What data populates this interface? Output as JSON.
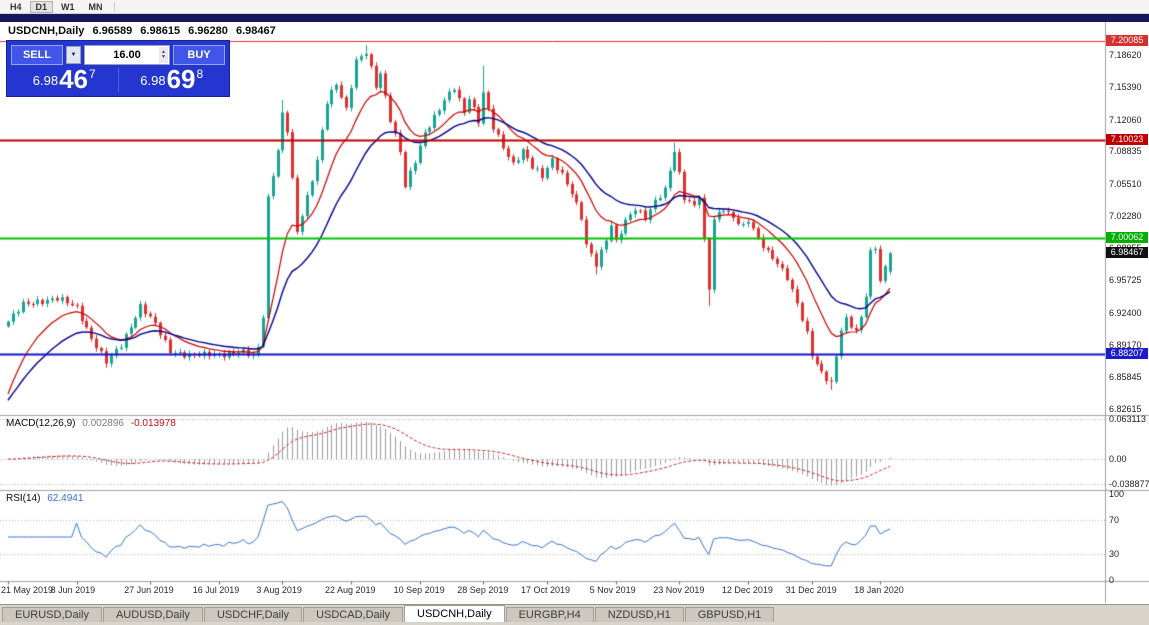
{
  "toolbar": {
    "timeframes": [
      "H4",
      "D1",
      "W1",
      "MN"
    ],
    "active_timeframe": "D1"
  },
  "chart_header": {
    "symbol": "USDCNH,Daily",
    "open": "6.96589",
    "high": "6.98615",
    "low": "6.96280",
    "close": "6.98467"
  },
  "trade_panel": {
    "sell_label": "SELL",
    "buy_label": "BUY",
    "volume": "16.00",
    "sell_price": {
      "prefix": "6.98",
      "big": "46",
      "sup": "7"
    },
    "buy_price": {
      "prefix": "6.98",
      "big": "69",
      "sup": "8"
    }
  },
  "indicators": {
    "macd": {
      "label": "MACD(12,26,9)",
      "main_value": "0.002896",
      "signal_value": "-0.013978",
      "axis_ticks": [
        {
          "v": 0.063113,
          "s": "0.063113"
        },
        {
          "v": 0,
          "s": "0.00"
        },
        {
          "v": -0.038877,
          "s": "-0.038877"
        }
      ]
    },
    "rsi": {
      "label": "RSI(14)",
      "value": "62.4941",
      "levels": [
        70,
        30
      ],
      "axis_ticks": [
        {
          "v": 100,
          "s": "100"
        },
        {
          "v": 70,
          "s": "70"
        },
        {
          "v": 30,
          "s": "30"
        },
        {
          "v": 0,
          "s": "0"
        }
      ]
    }
  },
  "price_axis_ticks": [
    {
      "v": 7.1862,
      "s": "7.18620"
    },
    {
      "v": 7.1539,
      "s": "7.15390"
    },
    {
      "v": 7.1206,
      "s": "7.12060"
    },
    {
      "v": 7.08835,
      "s": "7.08835"
    },
    {
      "v": 7.0551,
      "s": "7.05510"
    },
    {
      "v": 7.0228,
      "s": "7.02280"
    },
    {
      "v": 6.98955,
      "s": "6.98955"
    },
    {
      "v": 6.95725,
      "s": "6.95725"
    },
    {
      "v": 6.924,
      "s": "6.92400"
    },
    {
      "v": 6.8917,
      "s": "6.89170"
    },
    {
      "v": 6.85845,
      "s": "6.85845"
    },
    {
      "v": 6.82615,
      "s": "6.82615"
    }
  ],
  "levels": [
    {
      "value": 7.20085,
      "label": "7.20085",
      "color": "#e03232",
      "label_bg": "#d83030",
      "width": 1
    },
    {
      "value": 7.10023,
      "label": "7.10023",
      "color": "#bb0000",
      "label_bg": "#c00000",
      "width": 2
    },
    {
      "value": 7.00062,
      "label": "7.00062",
      "color": "#00c400",
      "label_bg": "#00b000",
      "width": 2
    },
    {
      "value": 6.88207,
      "label": "6.88207",
      "color": "#1414c8",
      "label_bg": "#1a1ace",
      "width": 2
    }
  ],
  "current_price": {
    "value": 6.98467,
    "label": "6.98467",
    "bg": "#111111"
  },
  "chart_data": {
    "type": "candlestick",
    "title": "USDCNH,Daily",
    "ylim": [
      6.822,
      7.218
    ],
    "num_candles": 181,
    "close_keyframes": [
      [
        0,
        6.915
      ],
      [
        3,
        6.932
      ],
      [
        6,
        6.936
      ],
      [
        10,
        6.938
      ],
      [
        14,
        6.93
      ],
      [
        17,
        6.898
      ],
      [
        20,
        6.873
      ],
      [
        23,
        6.892
      ],
      [
        27,
        6.93
      ],
      [
        30,
        6.912
      ],
      [
        33,
        6.886
      ],
      [
        37,
        6.879
      ],
      [
        41,
        6.883
      ],
      [
        45,
        6.881
      ],
      [
        48,
        6.884
      ],
      [
        50,
        6.882
      ],
      [
        51,
        6.89
      ],
      [
        52,
        6.922
      ],
      [
        53,
        7.04
      ],
      [
        55,
        7.088
      ],
      [
        56,
        7.125
      ],
      [
        57,
        7.11
      ],
      [
        58,
        7.06
      ],
      [
        59,
        7.008
      ],
      [
        61,
        7.042
      ],
      [
        63,
        7.078
      ],
      [
        65,
        7.138
      ],
      [
        67,
        7.158
      ],
      [
        69,
        7.132
      ],
      [
        71,
        7.18
      ],
      [
        73,
        7.188
      ],
      [
        75,
        7.155
      ],
      [
        76,
        7.168
      ],
      [
        78,
        7.122
      ],
      [
        80,
        7.088
      ],
      [
        81,
        7.052
      ],
      [
        83,
        7.078
      ],
      [
        85,
        7.108
      ],
      [
        87,
        7.124
      ],
      [
        89,
        7.14
      ],
      [
        91,
        7.152
      ],
      [
        93,
        7.128
      ],
      [
        94,
        7.144
      ],
      [
        96,
        7.12
      ],
      [
        97,
        7.148
      ],
      [
        99,
        7.112
      ],
      [
        101,
        7.092
      ],
      [
        103,
        7.076
      ],
      [
        105,
        7.09
      ],
      [
        107,
        7.072
      ],
      [
        109,
        7.062
      ],
      [
        111,
        7.08
      ],
      [
        113,
        7.066
      ],
      [
        115,
        7.046
      ],
      [
        117,
        7.02
      ],
      [
        118,
        6.992
      ],
      [
        120,
        6.974
      ],
      [
        122,
        7.0
      ],
      [
        123,
        7.014
      ],
      [
        124,
        6.996
      ],
      [
        126,
        7.016
      ],
      [
        128,
        7.03
      ],
      [
        130,
        7.022
      ],
      [
        132,
        7.038
      ],
      [
        134,
        7.048
      ],
      [
        136,
        7.088
      ],
      [
        138,
        7.042
      ],
      [
        140,
        7.034
      ],
      [
        141,
        7.044
      ],
      [
        143,
        6.948
      ],
      [
        144,
        7.018
      ],
      [
        146,
        7.03
      ],
      [
        148,
        7.022
      ],
      [
        150,
        7.012
      ],
      [
        151,
        7.018
      ],
      [
        153,
        6.998
      ],
      [
        155,
        6.986
      ],
      [
        157,
        6.976
      ],
      [
        159,
        6.96
      ],
      [
        161,
        6.932
      ],
      [
        163,
        6.902
      ],
      [
        164,
        6.882
      ],
      [
        166,
        6.864
      ],
      [
        168,
        6.852
      ],
      [
        170,
        6.906
      ],
      [
        171,
        6.916
      ],
      [
        173,
        6.906
      ],
      [
        174,
        6.92
      ],
      [
        175,
        6.944
      ],
      [
        176,
        6.986
      ],
      [
        177,
        6.99
      ],
      [
        178,
        6.956
      ],
      [
        179,
        6.968
      ],
      [
        180,
        6.98467
      ]
    ],
    "wick_overrides": [
      {
        "i": 20,
        "l": 6.868
      },
      {
        "i": 56,
        "h": 7.141
      },
      {
        "i": 73,
        "h": 7.1965
      },
      {
        "i": 97,
        "h": 7.1755
      },
      {
        "i": 120,
        "l": 6.963
      },
      {
        "i": 136,
        "h": 7.097
      },
      {
        "i": 143,
        "l": 6.931
      },
      {
        "i": 168,
        "l": 6.8455
      }
    ],
    "last_candle": {
      "o": 6.96589,
      "h": 6.98615,
      "l": 6.9628,
      "c": 6.98467
    },
    "date_ticks": [
      {
        "i": 0,
        "label": "21 May 2019"
      },
      {
        "i": 14,
        "label": "8 Jun 2019"
      },
      {
        "i": 29,
        "label": "27 Jun 2019"
      },
      {
        "i": 43,
        "label": "16 Jul 2019"
      },
      {
        "i": 56,
        "label": "3 Aug 2019"
      },
      {
        "i": 70,
        "label": "22 Aug 2019"
      },
      {
        "i": 84,
        "label": "10 Sep 2019"
      },
      {
        "i": 97,
        "label": "28 Sep 2019"
      },
      {
        "i": 110,
        "label": "17 Oct 2019"
      },
      {
        "i": 124,
        "label": "5 Nov 2019"
      },
      {
        "i": 137,
        "label": "23 Nov 2019"
      },
      {
        "i": 151,
        "label": "12 Dec 2019"
      },
      {
        "i": 164,
        "label": "31 Dec 2019"
      },
      {
        "i": 178,
        "label": "18 Jan 2020"
      }
    ],
    "ma": {
      "fast_period": 12,
      "slow_period": 24,
      "warmup_seed": 6.828
    },
    "macd_params": [
      12,
      26,
      9
    ],
    "rsi_period": 14,
    "colors": {
      "up": "#1ba393",
      "down": "#df3030",
      "ma_fast": "#cc0000",
      "ma_slow": "#00008b",
      "macd_hist": "#9b9b9b",
      "macd_signal": "#cc2222",
      "rsi_line": "#3c78c8"
    }
  },
  "bottom_tabs": {
    "active": "USDCNH,Daily",
    "tabs": [
      "EURUSD,Daily",
      "AUDUSD,Daily",
      "USDCHF,Daily",
      "USDCAD,Daily",
      "USDCNH,Daily",
      "EURGBP,H4",
      "NZDUSD,H1",
      "GBPUSD,H1"
    ]
  }
}
